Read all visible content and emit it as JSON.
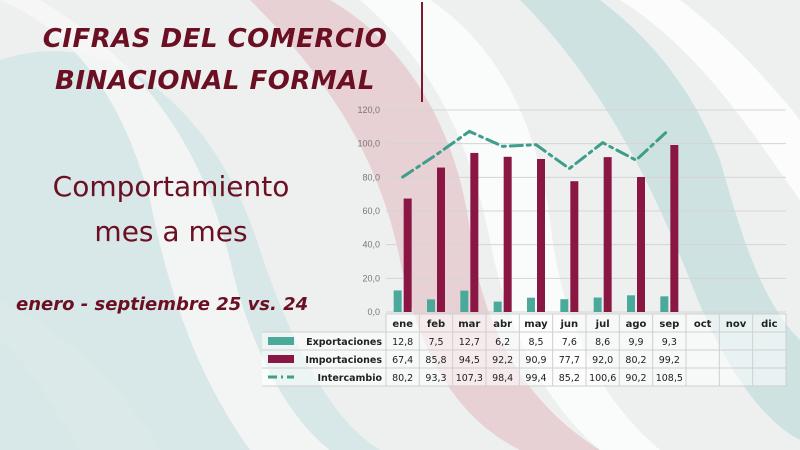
{
  "header": {
    "title_line1": "CIFRAS DEL COMERCIO",
    "title_line2": "BINACIONAL FORMAL"
  },
  "subtitle": {
    "line1": "Comportamiento",
    "line2": "mes a mes"
  },
  "period": "enero - septiembre 25 vs. 24",
  "colors": {
    "title": "#6b0f22",
    "exportaciones": "#4aa99a",
    "importaciones": "#8a1743",
    "intercambio": "#3d9e8c"
  },
  "chart_data": {
    "type": "bar",
    "categories": [
      "ene",
      "feb",
      "mar",
      "abr",
      "may",
      "jun",
      "jul",
      "ago",
      "sep",
      "oct",
      "nov",
      "dic"
    ],
    "series": [
      {
        "name": "Exportaciones",
        "type": "bar",
        "values": [
          12.8,
          7.5,
          12.7,
          6.2,
          8.5,
          7.6,
          8.6,
          9.9,
          9.3,
          null,
          null,
          null
        ],
        "labels": [
          "12,8",
          "7,5",
          "12,7",
          "6,2",
          "8,5",
          "7,6",
          "8,6",
          "9,9",
          "9,3",
          "",
          "",
          ""
        ]
      },
      {
        "name": "Importaciones",
        "type": "bar",
        "values": [
          67.4,
          85.8,
          94.5,
          92.2,
          90.9,
          77.7,
          92.0,
          80.2,
          99.2,
          null,
          null,
          null
        ],
        "labels": [
          "67,4",
          "85,8",
          "94,5",
          "92,2",
          "90,9",
          "77,7",
          "92,0",
          "80,2",
          "99,2",
          "",
          "",
          ""
        ]
      },
      {
        "name": "Intercambio",
        "type": "line",
        "values": [
          80.2,
          93.3,
          107.3,
          98.4,
          99.4,
          85.2,
          100.6,
          90.2,
          108.5,
          null,
          null,
          null
        ],
        "labels": [
          "80,2",
          "93,3",
          "107,3",
          "98,4",
          "99,4",
          "85,2",
          "100,6",
          "90,2",
          "108,5",
          "",
          "",
          ""
        ]
      }
    ],
    "ylim": [
      0,
      120
    ],
    "yticks": [
      "0,0",
      "20,0",
      "40,0",
      "60,0",
      "80,0",
      "100,0",
      "120,0"
    ],
    "grid": true,
    "legend": "data-table"
  }
}
